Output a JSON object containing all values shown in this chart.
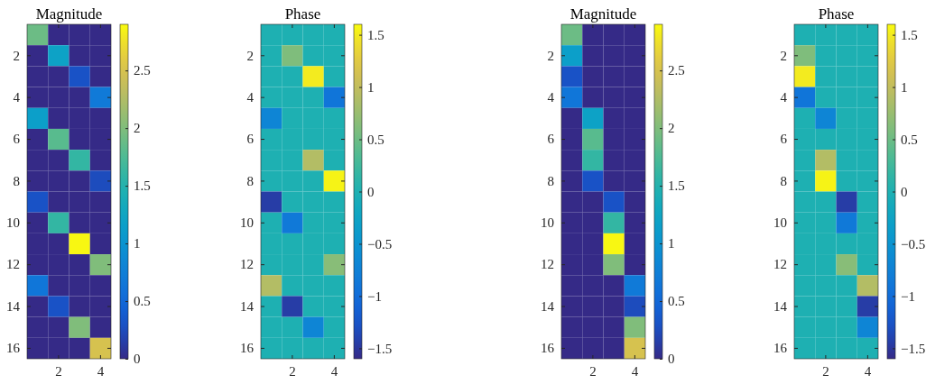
{
  "chart_data": [
    {
      "type": "heatmap",
      "title": "Magnitude",
      "categories": [
        null,
        "2",
        null,
        "4"
      ],
      "y_categories": [
        null,
        "2",
        null,
        "4",
        null,
        "6",
        null,
        "8",
        null,
        "10",
        null,
        "12",
        null,
        "14",
        null,
        "16"
      ],
      "cells": [
        [
          1.9,
          0,
          0,
          0
        ],
        [
          0,
          1.2,
          0,
          0
        ],
        [
          0,
          0,
          0.3,
          0
        ],
        [
          0,
          0,
          0,
          0.7
        ],
        [
          1.15,
          0,
          0,
          0
        ],
        [
          0,
          1.8,
          0,
          0
        ],
        [
          0,
          0,
          1.6,
          0
        ],
        [
          0,
          0,
          0,
          0.25
        ],
        [
          0.3,
          0,
          0,
          0
        ],
        [
          0,
          1.6,
          0,
          0
        ],
        [
          0,
          0,
          2.88,
          0
        ],
        [
          0,
          0,
          0,
          2.0
        ],
        [
          0.65,
          0,
          0,
          0
        ],
        [
          0,
          0.3,
          0,
          0
        ],
        [
          0,
          0,
          2.0,
          0
        ],
        [
          0,
          0,
          0,
          2.5
        ]
      ],
      "clim": [
        0,
        2.9
      ],
      "cticks": [
        0,
        0.5,
        1,
        1.5,
        2,
        2.5
      ]
    },
    {
      "type": "heatmap",
      "title": "Phase",
      "categories": [
        null,
        "2",
        null,
        "4"
      ],
      "y_categories": [
        null,
        "2",
        null,
        "4",
        null,
        "6",
        null,
        "8",
        null,
        "10",
        null,
        "12",
        null,
        "14",
        null,
        "16"
      ],
      "cells": [
        [
          0,
          0,
          0,
          0
        ],
        [
          0,
          0.6,
          0,
          0
        ],
        [
          0,
          0,
          1.5,
          0
        ],
        [
          0,
          0,
          0,
          -0.9
        ],
        [
          -0.7,
          0,
          0,
          0
        ],
        [
          0,
          0,
          0,
          0
        ],
        [
          0,
          0,
          0.9,
          0
        ],
        [
          0,
          0,
          0,
          1.55
        ],
        [
          -1.45,
          0,
          0,
          0
        ],
        [
          0,
          -0.85,
          0,
          0
        ],
        [
          0,
          0,
          0,
          0
        ],
        [
          0,
          0,
          0,
          0.65
        ],
        [
          0.9,
          0,
          0,
          0
        ],
        [
          0,
          -1.45,
          0,
          0
        ],
        [
          0,
          0,
          -0.7,
          0
        ],
        [
          0,
          0,
          0,
          0
        ]
      ],
      "clim": [
        -1.6,
        1.6
      ],
      "cticks": [
        -1.5,
        -1,
        -0.5,
        0,
        0.5,
        1,
        1.5
      ]
    },
    {
      "type": "heatmap",
      "title": "Magnitude",
      "categories": [
        null,
        "2",
        null,
        "4"
      ],
      "y_categories": [
        null,
        "2",
        null,
        "4",
        null,
        "6",
        null,
        "8",
        null,
        "10",
        null,
        "12",
        null,
        "14",
        null,
        "16"
      ],
      "cells": [
        [
          1.9,
          0,
          0,
          0
        ],
        [
          1.15,
          0,
          0,
          0
        ],
        [
          0.3,
          0,
          0,
          0
        ],
        [
          0.65,
          0,
          0,
          0
        ],
        [
          0,
          1.2,
          0,
          0
        ],
        [
          0,
          1.8,
          0,
          0
        ],
        [
          0,
          1.6,
          0,
          0
        ],
        [
          0,
          0.3,
          0,
          0
        ],
        [
          0,
          0,
          0.3,
          0
        ],
        [
          0,
          0,
          1.6,
          0
        ],
        [
          0,
          0,
          2.88,
          0
        ],
        [
          0,
          0,
          2.0,
          0
        ],
        [
          0,
          0,
          0,
          0.7
        ],
        [
          0,
          0,
          0,
          0.25
        ],
        [
          0,
          0,
          0,
          2.0
        ],
        [
          0,
          0,
          0,
          2.5
        ]
      ],
      "clim": [
        0,
        2.9
      ],
      "cticks": [
        0,
        0.5,
        1,
        1.5,
        2,
        2.5
      ]
    },
    {
      "type": "heatmap",
      "title": "Phase",
      "categories": [
        null,
        "2",
        null,
        "4"
      ],
      "y_categories": [
        null,
        "2",
        null,
        "4",
        null,
        "6",
        null,
        "8",
        null,
        "10",
        null,
        "12",
        null,
        "14",
        null,
        "16"
      ],
      "cells": [
        [
          0,
          0,
          0,
          0
        ],
        [
          0.6,
          0,
          0,
          0
        ],
        [
          1.5,
          0,
          0,
          0
        ],
        [
          -0.9,
          0,
          0,
          0
        ],
        [
          0,
          -0.7,
          0,
          0
        ],
        [
          0,
          0,
          0,
          0
        ],
        [
          0,
          0.9,
          0,
          0
        ],
        [
          0,
          1.55,
          0,
          0
        ],
        [
          0,
          0,
          -1.45,
          0
        ],
        [
          0,
          0,
          -0.85,
          0
        ],
        [
          0,
          0,
          0,
          0
        ],
        [
          0,
          0,
          0.65,
          0
        ],
        [
          0,
          0,
          0,
          0.9
        ],
        [
          0,
          0,
          0,
          -1.45
        ],
        [
          0,
          0,
          0,
          -0.7
        ],
        [
          0,
          0,
          0,
          0
        ]
      ],
      "clim": [
        -1.6,
        1.6
      ],
      "cticks": [
        -1.5,
        -1,
        -0.5,
        0,
        0.5,
        1,
        1.5
      ]
    }
  ]
}
